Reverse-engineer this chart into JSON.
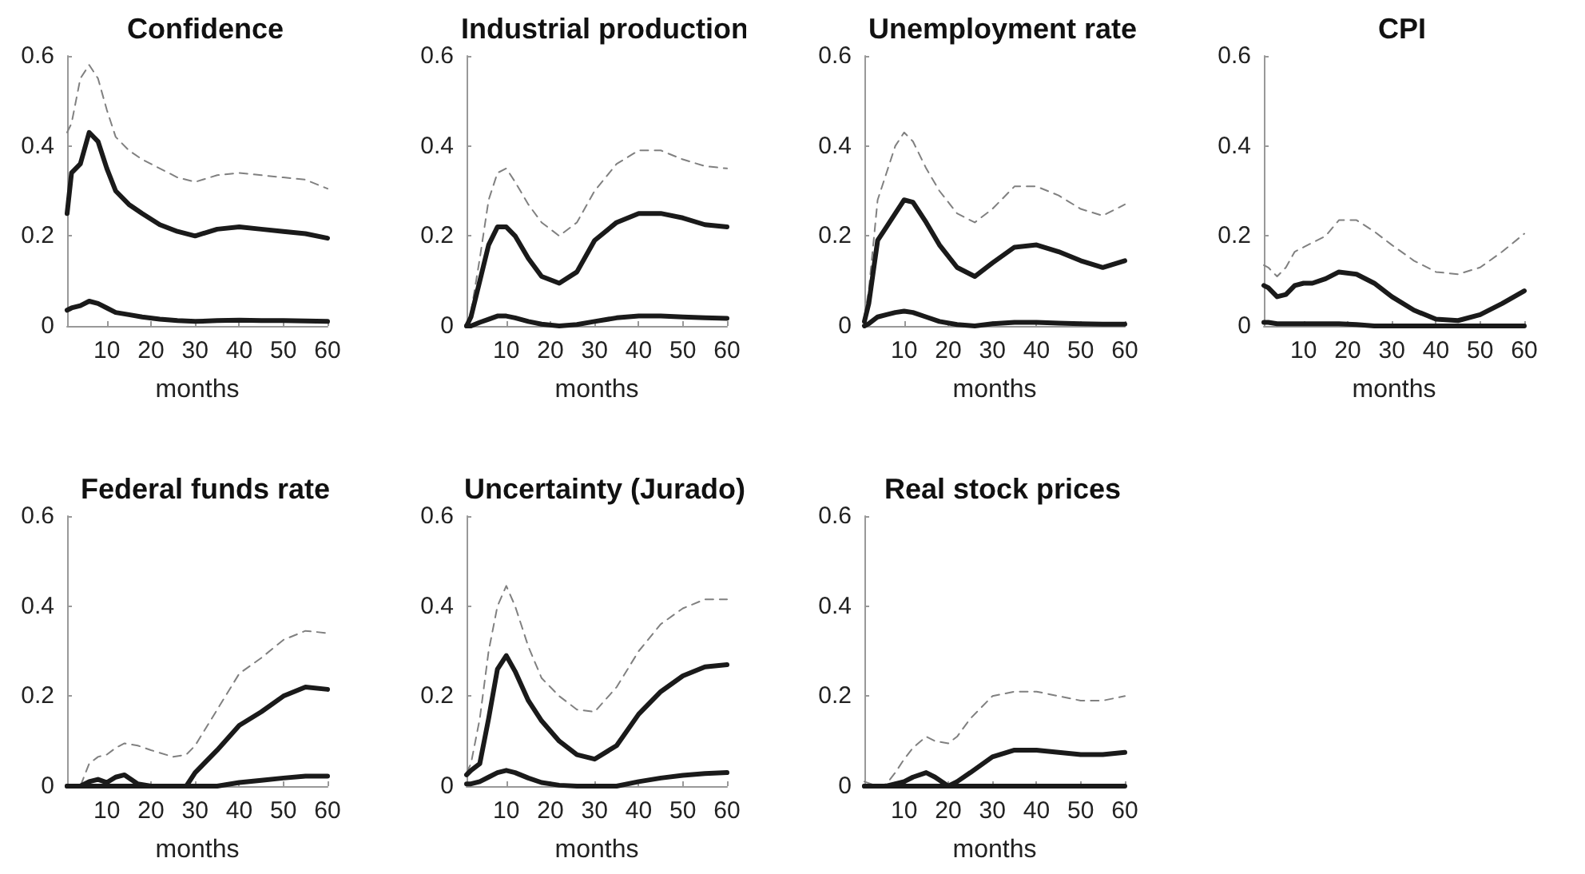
{
  "chart_data": [
    {
      "type": "line",
      "title": "Confidence",
      "xlabel": "months",
      "xlim": [
        1,
        60
      ],
      "ylim": [
        0,
        0.6
      ],
      "xticks": [
        10,
        20,
        30,
        40,
        50,
        60
      ],
      "yticks": [
        0,
        0.2,
        0.4,
        0.6
      ],
      "x": [
        1,
        2,
        4,
        6,
        8,
        10,
        12,
        15,
        18,
        22,
        26,
        30,
        35,
        40,
        45,
        50,
        55,
        60
      ],
      "series": [
        {
          "color": "#808080",
          "line_style": "dashed",
          "values": [
            0.43,
            0.45,
            0.55,
            0.58,
            0.55,
            0.48,
            0.42,
            0.39,
            0.37,
            0.35,
            0.33,
            0.32,
            0.335,
            0.34,
            0.335,
            0.33,
            0.325,
            0.305
          ]
        },
        {
          "color": "#1a1a1a",
          "line_style": "solid",
          "values": [
            0.25,
            0.34,
            0.36,
            0.43,
            0.41,
            0.35,
            0.3,
            0.27,
            0.25,
            0.225,
            0.21,
            0.2,
            0.215,
            0.22,
            0.215,
            0.21,
            0.205,
            0.195
          ]
        },
        {
          "color": "#1a1a1a",
          "line_style": "solid",
          "values": [
            0.035,
            0.04,
            0.045,
            0.055,
            0.05,
            0.04,
            0.03,
            0.025,
            0.02,
            0.015,
            0.012,
            0.01,
            0.012,
            0.013,
            0.012,
            0.012,
            0.011,
            0.01
          ]
        }
      ]
    },
    {
      "type": "line",
      "title": "Industrial production",
      "xlabel": "months",
      "xlim": [
        1,
        60
      ],
      "ylim": [
        0,
        0.6
      ],
      "xticks": [
        10,
        20,
        30,
        40,
        50,
        60
      ],
      "yticks": [
        0,
        0.2,
        0.4,
        0.6
      ],
      "x": [
        1,
        2,
        4,
        6,
        8,
        10,
        12,
        15,
        18,
        22,
        26,
        30,
        35,
        40,
        45,
        50,
        55,
        60
      ],
      "series": [
        {
          "color": "#808080",
          "line_style": "dashed",
          "values": [
            0,
            0.03,
            0.15,
            0.28,
            0.34,
            0.35,
            0.32,
            0.27,
            0.23,
            0.2,
            0.23,
            0.3,
            0.36,
            0.39,
            0.39,
            0.37,
            0.355,
            0.35
          ]
        },
        {
          "color": "#1a1a1a",
          "line_style": "solid",
          "values": [
            0,
            0.02,
            0.1,
            0.18,
            0.22,
            0.22,
            0.2,
            0.15,
            0.11,
            0.095,
            0.12,
            0.19,
            0.23,
            0.25,
            0.25,
            0.24,
            0.225,
            0.22
          ]
        },
        {
          "color": "#1a1a1a",
          "line_style": "solid",
          "values": [
            0,
            0,
            0.008,
            0.015,
            0.022,
            0.022,
            0.018,
            0.01,
            0.004,
            0,
            0.003,
            0.01,
            0.018,
            0.022,
            0.022,
            0.02,
            0.018,
            0.017
          ]
        }
      ]
    },
    {
      "type": "line",
      "title": "Unemployment rate",
      "xlabel": "months",
      "xlim": [
        1,
        60
      ],
      "ylim": [
        0,
        0.6
      ],
      "xticks": [
        10,
        20,
        30,
        40,
        50,
        60
      ],
      "yticks": [
        0,
        0.2,
        0.4,
        0.6
      ],
      "x": [
        1,
        2,
        4,
        6,
        8,
        10,
        12,
        15,
        18,
        22,
        26,
        30,
        35,
        40,
        45,
        50,
        55,
        60
      ],
      "series": [
        {
          "color": "#808080",
          "line_style": "dashed",
          "values": [
            0.02,
            0.08,
            0.28,
            0.34,
            0.4,
            0.43,
            0.41,
            0.35,
            0.3,
            0.25,
            0.23,
            0.26,
            0.31,
            0.31,
            0.29,
            0.26,
            0.245,
            0.27
          ]
        },
        {
          "color": "#1a1a1a",
          "line_style": "solid",
          "values": [
            0.01,
            0.05,
            0.19,
            0.22,
            0.25,
            0.28,
            0.275,
            0.23,
            0.18,
            0.13,
            0.11,
            0.14,
            0.175,
            0.18,
            0.165,
            0.145,
            0.13,
            0.145
          ]
        },
        {
          "color": "#1a1a1a",
          "line_style": "solid",
          "values": [
            0,
            0.005,
            0.02,
            0.025,
            0.03,
            0.033,
            0.03,
            0.02,
            0.01,
            0.003,
            0,
            0.005,
            0.008,
            0.008,
            0.006,
            0.005,
            0.004,
            0.004
          ]
        }
      ]
    },
    {
      "type": "line",
      "title": "CPI",
      "xlabel": "months",
      "xlim": [
        1,
        60
      ],
      "ylim": [
        0,
        0.6
      ],
      "xticks": [
        10,
        20,
        30,
        40,
        50,
        60
      ],
      "yticks": [
        0,
        0.2,
        0.4,
        0.6
      ],
      "x": [
        1,
        2,
        4,
        6,
        8,
        10,
        12,
        15,
        18,
        22,
        26,
        30,
        35,
        40,
        45,
        50,
        55,
        60
      ],
      "series": [
        {
          "color": "#808080",
          "line_style": "dashed",
          "values": [
            0.135,
            0.13,
            0.11,
            0.13,
            0.165,
            0.175,
            0.185,
            0.2,
            0.235,
            0.235,
            0.21,
            0.18,
            0.145,
            0.12,
            0.115,
            0.13,
            0.165,
            0.205
          ]
        },
        {
          "color": "#1a1a1a",
          "line_style": "solid",
          "values": [
            0.09,
            0.085,
            0.065,
            0.07,
            0.09,
            0.095,
            0.095,
            0.105,
            0.12,
            0.115,
            0.095,
            0.065,
            0.035,
            0.015,
            0.012,
            0.025,
            0.05,
            0.078
          ]
        },
        {
          "color": "#1a1a1a",
          "line_style": "solid",
          "values": [
            0.008,
            0.008,
            0.005,
            0.005,
            0.005,
            0.005,
            0.005,
            0.005,
            0.005,
            0.003,
            0,
            0,
            0,
            0,
            0,
            0,
            0,
            0
          ]
        }
      ]
    },
    {
      "type": "line",
      "title": "Federal funds rate",
      "xlabel": "months",
      "xlim": [
        1,
        60
      ],
      "ylim": [
        0,
        0.6
      ],
      "xticks": [
        10,
        20,
        30,
        40,
        50,
        60
      ],
      "yticks": [
        0,
        0.2,
        0.4,
        0.6
      ],
      "x": [
        1,
        4,
        6,
        8,
        10,
        12,
        14,
        17,
        20,
        25,
        28,
        30,
        35,
        40,
        45,
        50,
        55,
        60
      ],
      "series": [
        {
          "color": "#808080",
          "line_style": "dashed",
          "values": [
            0,
            0,
            0.05,
            0.065,
            0.07,
            0.085,
            0.095,
            0.09,
            0.08,
            0.065,
            0.07,
            0.09,
            0.17,
            0.25,
            0.285,
            0.325,
            0.345,
            0.34
          ]
        },
        {
          "color": "#1a1a1a",
          "line_style": "solid",
          "values": [
            0,
            0,
            0.01,
            0.015,
            0.008,
            0.02,
            0.025,
            0.005,
            0,
            0,
            0,
            0.03,
            0.08,
            0.135,
            0.165,
            0.2,
            0.22,
            0.215
          ]
        },
        {
          "color": "#1a1a1a",
          "line_style": "solid",
          "values": [
            0,
            0,
            0,
            0,
            0,
            0,
            0,
            0,
            0,
            0,
            0,
            0,
            0,
            0.008,
            0.013,
            0.018,
            0.022,
            0.022
          ]
        }
      ]
    },
    {
      "type": "line",
      "title": "Uncertainty (Jurado)",
      "xlabel": "months",
      "xlim": [
        1,
        60
      ],
      "ylim": [
        0,
        0.6
      ],
      "xticks": [
        10,
        20,
        30,
        40,
        50,
        60
      ],
      "yticks": [
        0,
        0.2,
        0.4,
        0.6
      ],
      "x": [
        1,
        2,
        4,
        6,
        8,
        10,
        12,
        15,
        18,
        22,
        26,
        30,
        35,
        40,
        45,
        50,
        55,
        60
      ],
      "series": [
        {
          "color": "#808080",
          "line_style": "dashed",
          "values": [
            0.03,
            0.05,
            0.15,
            0.3,
            0.4,
            0.445,
            0.4,
            0.31,
            0.24,
            0.2,
            0.17,
            0.165,
            0.22,
            0.3,
            0.36,
            0.395,
            0.415,
            0.415
          ]
        },
        {
          "color": "#1a1a1a",
          "line_style": "solid",
          "values": [
            0.025,
            0.035,
            0.05,
            0.15,
            0.26,
            0.29,
            0.255,
            0.19,
            0.145,
            0.1,
            0.07,
            0.06,
            0.09,
            0.16,
            0.21,
            0.245,
            0.265,
            0.27
          ]
        },
        {
          "color": "#1a1a1a",
          "line_style": "solid",
          "values": [
            0.005,
            0.005,
            0.01,
            0.02,
            0.03,
            0.035,
            0.03,
            0.018,
            0.008,
            0.002,
            0,
            0,
            0,
            0.01,
            0.018,
            0.024,
            0.028,
            0.03
          ]
        }
      ]
    },
    {
      "type": "line",
      "title": "Real stock prices",
      "xlabel": "months",
      "xlim": [
        1,
        60
      ],
      "ylim": [
        0,
        0.6
      ],
      "xticks": [
        10,
        20,
        30,
        40,
        50,
        60
      ],
      "yticks": [
        0,
        0.2,
        0.4,
        0.6
      ],
      "x": [
        1,
        4,
        6,
        8,
        10,
        12,
        15,
        17,
        20,
        22,
        25,
        30,
        35,
        40,
        45,
        50,
        55,
        60
      ],
      "series": [
        {
          "color": "#808080",
          "line_style": "dashed",
          "values": [
            0.01,
            0,
            0.005,
            0.03,
            0.06,
            0.085,
            0.11,
            0.1,
            0.095,
            0.11,
            0.15,
            0.2,
            0.21,
            0.21,
            0.2,
            0.19,
            0.19,
            0.2
          ]
        },
        {
          "color": "#1a1a1a",
          "line_style": "solid",
          "values": [
            0,
            0,
            0,
            0.005,
            0.01,
            0.02,
            0.03,
            0.02,
            0,
            0.01,
            0.03,
            0.065,
            0.08,
            0.08,
            0.075,
            0.07,
            0.07,
            0.075
          ]
        },
        {
          "color": "#1a1a1a",
          "line_style": "solid",
          "values": [
            0,
            0,
            0,
            0,
            0,
            0,
            0,
            0,
            0,
            0,
            0,
            0,
            0,
            0,
            0,
            0,
            0,
            0
          ]
        }
      ]
    }
  ]
}
